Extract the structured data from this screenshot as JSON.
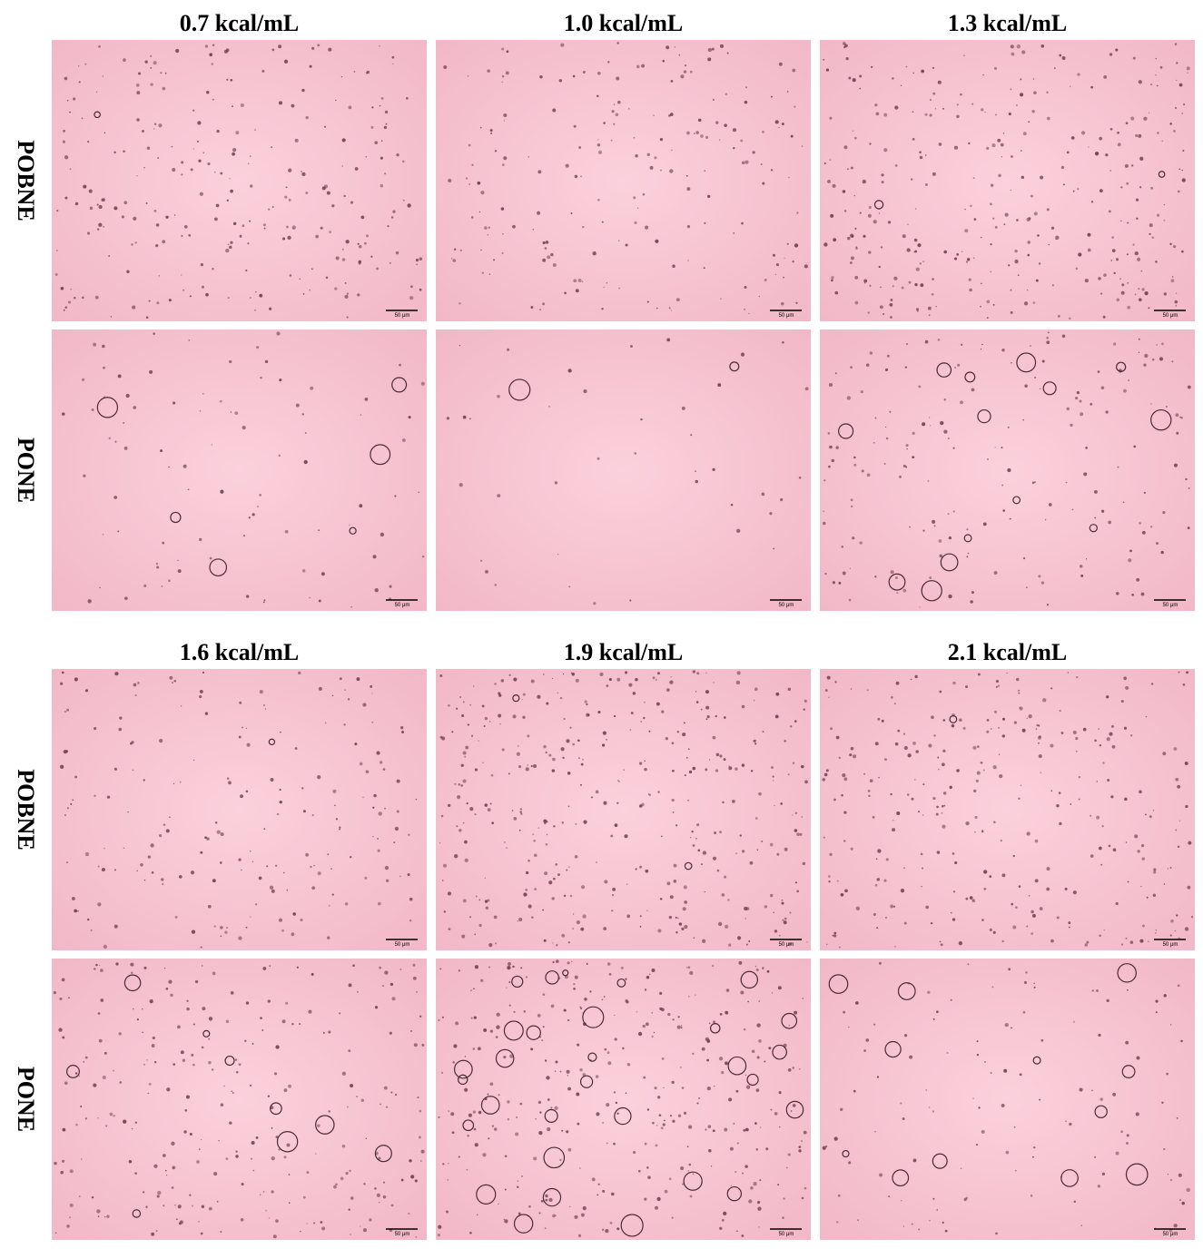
{
  "groups": [
    {
      "columns": [
        "0.7 kcal/mL",
        "1.0 kcal/mL",
        "1.3 kcal/mL"
      ],
      "rows": [
        "POBNE",
        "PONE"
      ]
    },
    {
      "columns": [
        "1.6 kcal/mL",
        "1.9 kcal/mL",
        "2.1 kcal/mL"
      ],
      "rows": [
        "POBNE",
        "PONE"
      ]
    }
  ],
  "scale_bar": "50 μm"
}
